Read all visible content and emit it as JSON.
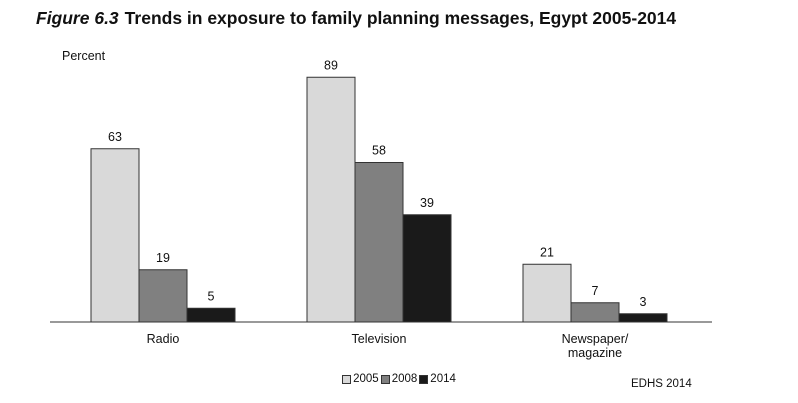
{
  "title": {
    "figure": "Figure 6.3",
    "text": "Trends in exposure to family planning messages, Egypt 2005-2014"
  },
  "source": "EDHS 2014",
  "chart_data": {
    "type": "bar",
    "ylabel": "Percent",
    "xlabel": "",
    "ylim": [
      0,
      100
    ],
    "grid": false,
    "legend": "bottom-center",
    "categories": [
      "Radio",
      "Television",
      "Newspaper/\nmagazine"
    ],
    "series": [
      {
        "name": "2005",
        "values": [
          63,
          89,
          21
        ],
        "color": "#d9d9d9"
      },
      {
        "name": "2008",
        "values": [
          19,
          58,
          7
        ],
        "color": "#808080"
      },
      {
        "name": "2014",
        "values": [
          5,
          39,
          3
        ],
        "color": "#1a1a1a"
      }
    ]
  }
}
